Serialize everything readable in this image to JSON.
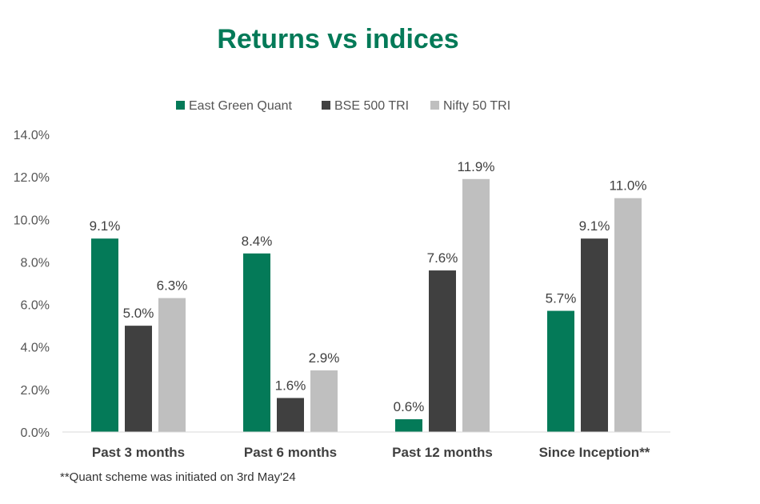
{
  "chart_data": {
    "type": "bar",
    "title": "Returns vs indices",
    "categories": [
      "Past 3 months",
      "Past 6 months",
      "Past 12 months",
      "Since Inception**"
    ],
    "series": [
      {
        "name": "East Green Quant",
        "color": "#047a58",
        "values": [
          9.1,
          8.4,
          0.6,
          5.7
        ],
        "labels": [
          "9.1%",
          "8.4%",
          "0.6%",
          "5.7%"
        ]
      },
      {
        "name": "BSE 500 TRI",
        "color": "#404040",
        "values": [
          5.0,
          1.6,
          7.6,
          9.1
        ],
        "labels": [
          "5.0%",
          "1.6%",
          "7.6%",
          "9.1%"
        ]
      },
      {
        "name": "Nifty 50 TRI",
        "color": "#bfbfbf",
        "values": [
          6.3,
          2.9,
          11.9,
          11.0
        ],
        "labels": [
          "6.3%",
          "2.9%",
          "11.9%",
          "11.0%"
        ]
      }
    ],
    "yticks": [
      "0.0%",
      "2.0%",
      "4.0%",
      "6.0%",
      "8.0%",
      "10.0%",
      "12.0%",
      "14.0%"
    ],
    "ylim": [
      0,
      14
    ],
    "xlabel": "",
    "ylabel": "",
    "legend_position": "top-center",
    "grid": false
  },
  "footnote": "**Quant scheme was initiated on 3rd May'24"
}
